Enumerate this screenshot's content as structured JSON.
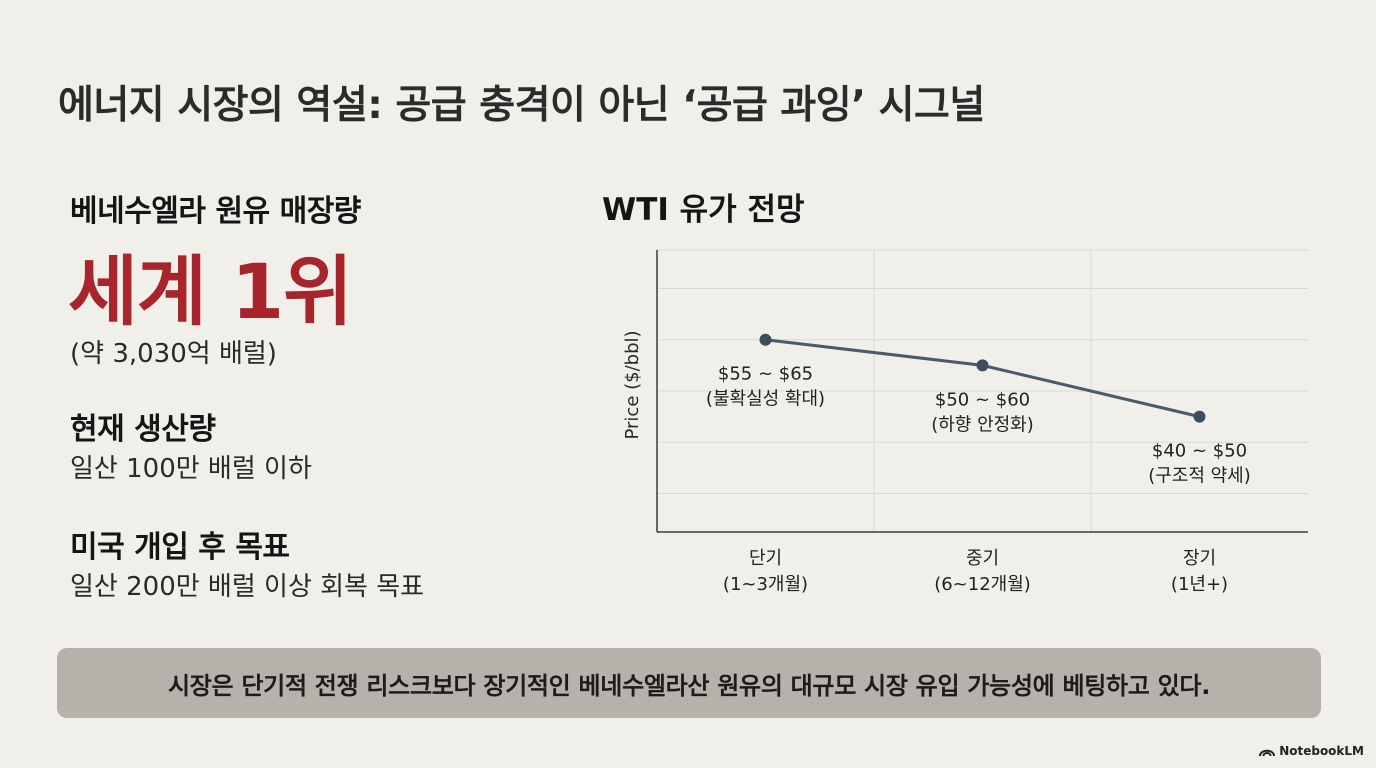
{
  "title": "에너지 시장의 역설: 공급 충격이 아닌 ‘공급 과잉’ 시그널",
  "stats": {
    "reserves_label": "베네수엘라 원유 매장량",
    "reserves_rank": "세계 1위",
    "reserves_note": "(약 3,030억 배럴)",
    "production_label": "현재 생산량",
    "production_value": "일산 100만 배럴 이하",
    "target_label": "미국 개입 후 목표",
    "target_value": "일산 200만 배럴 이상 회복 목표"
  },
  "chart_title": "WTI 유가 전망",
  "chart_data": {
    "type": "line",
    "title": "WTI 유가 전망",
    "xlabel": "",
    "ylabel": "Price ($/bbl)",
    "categories": [
      [
        "단기",
        "(1~3개월)"
      ],
      [
        "중기",
        "(6~12개월)"
      ],
      [
        "장기",
        "(1년+)"
      ]
    ],
    "values": [
      60,
      55,
      45
    ],
    "labels": [
      [
        "$55 ~ $65",
        "(불확실성 확대)"
      ],
      [
        "$50 ~ $60",
        "(하향 안정화)"
      ],
      [
        "$40 ~ $50",
        "(구조적 약세)"
      ]
    ],
    "ylim": [
      22.5,
      77.5
    ],
    "grid": true,
    "line_color": "#4a5a6b",
    "marker_color": "#3e4d5e"
  },
  "footer": "시장은 단기적 전쟁 리스크보다 장기적인 베네수엘라산 원유의 대규모 시장 유입 가능성에 베팅하고 있다.",
  "brand": "NotebookLM"
}
